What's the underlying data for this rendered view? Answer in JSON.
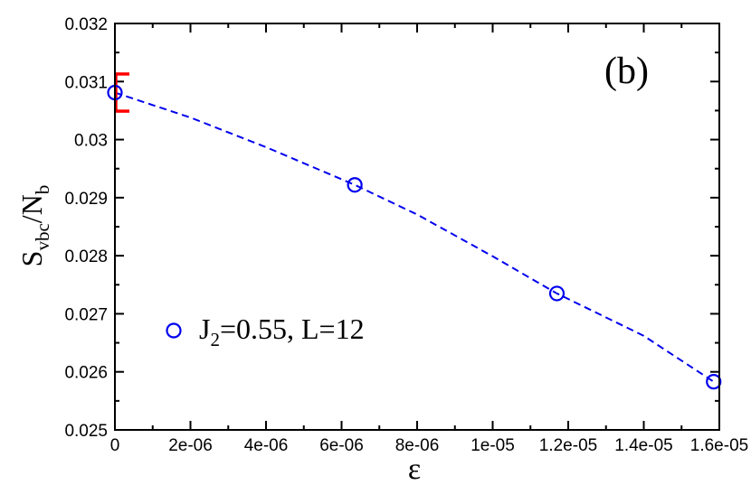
{
  "chart_data": {
    "type": "scatter",
    "panel_label": "(b)",
    "xlabel": "ε",
    "ylabel": {
      "main": "S",
      "sub1": "vbc",
      "mid": "/N",
      "sub2": "b"
    },
    "xlim": [
      0,
      1.6e-05
    ],
    "ylim": [
      0.025,
      0.032
    ],
    "x_ticks": [
      0,
      2e-06,
      4e-06,
      6e-06,
      8e-06,
      1e-05,
      1.2e-05,
      1.4e-05,
      1.6e-05
    ],
    "x_tick_labels": [
      "0",
      "2e-06",
      "4e-06",
      "6e-06",
      "8e-06",
      "1e-05",
      "1.2e-05",
      "1.4e-05",
      "1.6e-05"
    ],
    "y_ticks": [
      0.025,
      0.026,
      0.027,
      0.028,
      0.029,
      0.03,
      0.031,
      0.032
    ],
    "y_tick_labels": [
      "0.025",
      "0.026",
      "0.027",
      "0.028",
      "0.029",
      "0.03",
      "0.031",
      "0.032"
    ],
    "grid": false,
    "legend_position": "left",
    "series": [
      {
        "name": "J2=0.55, L=12",
        "legend_parts": {
          "a": "J",
          "sub": "2",
          "b": "=0.55, L=12"
        },
        "marker": "open-circle",
        "color": "#0000ee",
        "x": [
          0,
          6.35e-06,
          1.17e-05,
          1.585e-05
        ],
        "y": [
          0.03081,
          0.02922,
          0.02735,
          0.02583
        ]
      }
    ],
    "fit": {
      "style": "dashed",
      "color": "#0000ee",
      "x": [
        0,
        2e-06,
        4e-06,
        6.35e-06,
        8e-06,
        1e-05,
        1.17e-05,
        1.4e-05,
        1.585e-05
      ],
      "y": [
        0.03081,
        0.03038,
        0.02987,
        0.02922,
        0.02871,
        0.02799,
        0.02735,
        0.02662,
        0.02583
      ]
    },
    "error_bar": {
      "x": 0,
      "y_low": 0.03049,
      "y_high": 0.03113,
      "color": "#ff0000"
    }
  }
}
